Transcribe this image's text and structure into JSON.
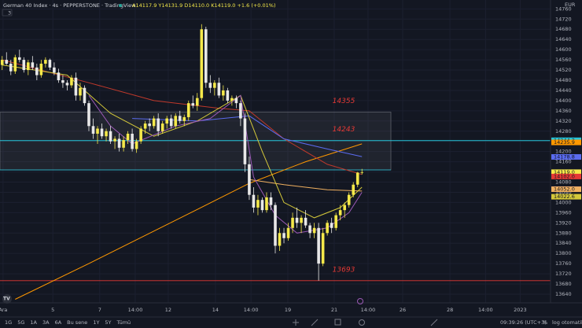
{
  "header": {
    "symbol": "German 40 Index · 4s · PEPPERSTONE · TradingView",
    "ohlc": "A14117.9 Y14131.9 D14110.0 K14119.0 +1.6 (+0.01%)",
    "indicators": "3",
    "currency": "EUR"
  },
  "chart_data": {
    "type": "candlestick",
    "up_color": "#f5e94a",
    "down_color": "#e8e8e8",
    "open": [
      14540,
      14560,
      14545,
      14515,
      14570,
      14560,
      14520,
      14550,
      14530,
      14500,
      14545,
      14560,
      14530,
      14510,
      14480,
      14470,
      14460,
      14490,
      14420,
      14450,
      14390,
      14300,
      14270,
      14290,
      14260,
      14280,
      14240,
      14250,
      14215,
      14245,
      14270,
      14210,
      14240,
      14290,
      14310,
      14300,
      14330,
      14280,
      14310,
      14330,
      14300,
      14340,
      14320,
      14335,
      14390,
      14380,
      14410,
      14680,
      14470,
      14450,
      14470,
      14420,
      14440,
      14400,
      14410,
      14390,
      14330,
      14150,
      14030,
      13980,
      14010,
      13970,
      14020,
      13990,
      13830,
      13880,
      13860,
      13900,
      13940,
      13920,
      13940,
      13910,
      13880,
      13900,
      13760,
      13880,
      13920,
      13900,
      13950,
      13970,
      13990,
      14030,
      14070,
      14117.9
    ],
    "high": [
      14575,
      14590,
      14560,
      14580,
      14600,
      14570,
      14560,
      14575,
      14545,
      14560,
      14570,
      14565,
      14550,
      14525,
      14500,
      14480,
      14500,
      14510,
      14470,
      14460,
      14400,
      14330,
      14300,
      14310,
      14290,
      14300,
      14260,
      14270,
      14260,
      14280,
      14290,
      14250,
      14300,
      14320,
      14330,
      14340,
      14350,
      14320,
      14340,
      14345,
      14350,
      14360,
      14345,
      14400,
      14420,
      14430,
      14700,
      14690,
      14500,
      14480,
      14490,
      14460,
      14450,
      14420,
      14420,
      14400,
      14350,
      14180,
      14060,
      14030,
      14020,
      14040,
      14040,
      14000,
      13900,
      13900,
      13920,
      13960,
      13980,
      13950,
      13970,
      13920,
      13920,
      13920,
      13900,
      13930,
      13940,
      13960,
      13990,
      14000,
      14040,
      14080,
      14120,
      14131.9
    ],
    "low": [
      14520,
      14540,
      14500,
      14505,
      14550,
      14510,
      14500,
      14520,
      14480,
      14490,
      14530,
      14520,
      14500,
      14470,
      14450,
      14440,
      14450,
      14400,
      14400,
      14380,
      14280,
      14250,
      14230,
      14250,
      14240,
      14230,
      14210,
      14200,
      14200,
      14230,
      14200,
      14195,
      14230,
      14270,
      14280,
      14290,
      14260,
      14270,
      14290,
      14290,
      14290,
      14310,
      14300,
      14320,
      14370,
      14360,
      14400,
      14450,
      14430,
      14420,
      14410,
      14400,
      14390,
      14380,
      14370,
      14300,
      14120,
      14010,
      13960,
      13950,
      13960,
      13960,
      13970,
      13800,
      13810,
      13840,
      13850,
      13880,
      13900,
      13880,
      13900,
      13860,
      13860,
      13693,
      13750,
      13870,
      13880,
      13890,
      13930,
      13940,
      13980,
      14020,
      14060,
      14110.0
    ],
    "close": [
      14560,
      14545,
      14515,
      14570,
      14560,
      14520,
      14550,
      14530,
      14500,
      14545,
      14560,
      14530,
      14510,
      14480,
      14470,
      14460,
      14490,
      14420,
      14450,
      14390,
      14300,
      14270,
      14290,
      14260,
      14280,
      14240,
      14250,
      14215,
      14245,
      14270,
      14210,
      14240,
      14290,
      14310,
      14300,
      14330,
      14280,
      14310,
      14330,
      14300,
      14340,
      14320,
      14335,
      14390,
      14380,
      14410,
      14680,
      14470,
      14450,
      14470,
      14420,
      14440,
      14400,
      14410,
      14390,
      14330,
      14150,
      14030,
      13980,
      14010,
      13970,
      14020,
      13990,
      13830,
      13880,
      13860,
      13900,
      13940,
      13920,
      13940,
      13910,
      13880,
      13900,
      13760,
      13880,
      13920,
      13900,
      13950,
      13970,
      13990,
      14030,
      14070,
      14117.4,
      14119.0
    ],
    "series": [
      {
        "color": "#ff9800",
        "x": [
          3,
          20,
          40,
          57,
          70,
          83
        ],
        "values": [
          13620,
          13760,
          13930,
          14075,
          14160,
          14230
        ]
      },
      {
        "color": "#f0b060",
        "x": [
          57,
          65,
          75,
          83
        ],
        "values": [
          14090,
          14070,
          14050,
          14045
        ]
      },
      {
        "color": "#c0392b",
        "x": [
          0,
          20,
          35,
          50,
          57,
          65,
          75,
          83
        ],
        "values": [
          14560,
          14470,
          14400,
          14370,
          14360,
          14250,
          14150,
          14110
        ]
      },
      {
        "color": "#5b6cf0",
        "x": [
          30,
          45,
          57,
          65,
          75,
          83
        ],
        "values": [
          14330,
          14320,
          14340,
          14250,
          14210,
          14180
        ]
      },
      {
        "color": "#d4c83a",
        "x": [
          0,
          15,
          25,
          35,
          45,
          55,
          60,
          65,
          72,
          78,
          83
        ],
        "values": [
          14540,
          14500,
          14350,
          14260,
          14320,
          14420,
          14200,
          14000,
          13940,
          13980,
          14060
        ]
      },
      {
        "color": "#9b59b6",
        "x": [
          20,
          25,
          30,
          40,
          48,
          55,
          58,
          63,
          68,
          75,
          80,
          83
        ],
        "values": [
          14420,
          14300,
          14230,
          14300,
          14330,
          14420,
          14100,
          13950,
          13880,
          13900,
          13960,
          14040
        ]
      }
    ],
    "zone": {
      "low": 14128,
      "high": 14355
    },
    "levels": [
      {
        "value": 14355,
        "color": "#e53935"
      },
      {
        "value": 14243,
        "color": "#e53935",
        "line_color": "#26c6da"
      },
      {
        "value": 13693,
        "color": "#e53935",
        "line_color": "#e53935"
      }
    ],
    "price_labels": [
      {
        "value": 14244.3,
        "label": "14244.3",
        "color": "#26c6da"
      },
      {
        "value": 14235.9,
        "label": "14235.9",
        "color": "#ff9800"
      },
      {
        "value": 14178.8,
        "label": "14178.8",
        "color": "#5b6cf0"
      },
      {
        "value": 14119.0,
        "label": "14119.0",
        "color": "#f5e94a"
      },
      {
        "value": 14102.0,
        "label": "14102.0",
        "color": "#e53935"
      },
      {
        "value": 14052.4,
        "label": "14052.4",
        "color": "#9b59b6"
      },
      {
        "value": 14052.0,
        "label": "14052.0",
        "color": "#f0b060"
      },
      {
        "value": 14022.6,
        "label": "14022.6",
        "color": "#d4c83a"
      }
    ],
    "xlim": [
      -0.5,
      126.5
    ],
    "ylim": [
      13606,
      14795
    ],
    "yticks": [
      13640,
      13680,
      13720,
      13760,
      13800,
      13840,
      13880,
      13920,
      13960,
      14000,
      14040,
      14080,
      14120,
      14160,
      14200,
      14240,
      14280,
      14320,
      14360,
      14400,
      14440,
      14480,
      14520,
      14560,
      14600,
      14640,
      14680,
      14720,
      14760
    ],
    "xticks": [
      {
        "value": 0.2,
        "label": "Ara"
      },
      {
        "value": 11.7,
        "label": "5"
      },
      {
        "value": 22.5,
        "label": "7"
      },
      {
        "value": 30.7,
        "label": "14:00"
      },
      {
        "value": 38.3,
        "label": "12"
      },
      {
        "value": 49.2,
        "label": "14"
      },
      {
        "value": 57.4,
        "label": "14:00"
      },
      {
        "value": 65.9,
        "label": "19"
      },
      {
        "value": 76.6,
        "label": "21"
      },
      {
        "value": 84.4,
        "label": "14:00"
      },
      {
        "value": 92.4,
        "label": "26"
      },
      {
        "value": 103.3,
        "label": "28"
      },
      {
        "value": 111.5,
        "label": "14:00"
      },
      {
        "value": 119.5,
        "label": "2023"
      }
    ],
    "grid": true
  },
  "toolbar": {
    "ranges": [
      "1G",
      "5G",
      "1A",
      "3A",
      "6A",
      "Bu sene",
      "1Y",
      "5Y",
      "Tümü"
    ],
    "clock": "09:39:26 (UTC+3)",
    "percent": "%",
    "log": "log",
    "auto": "otomatik"
  }
}
